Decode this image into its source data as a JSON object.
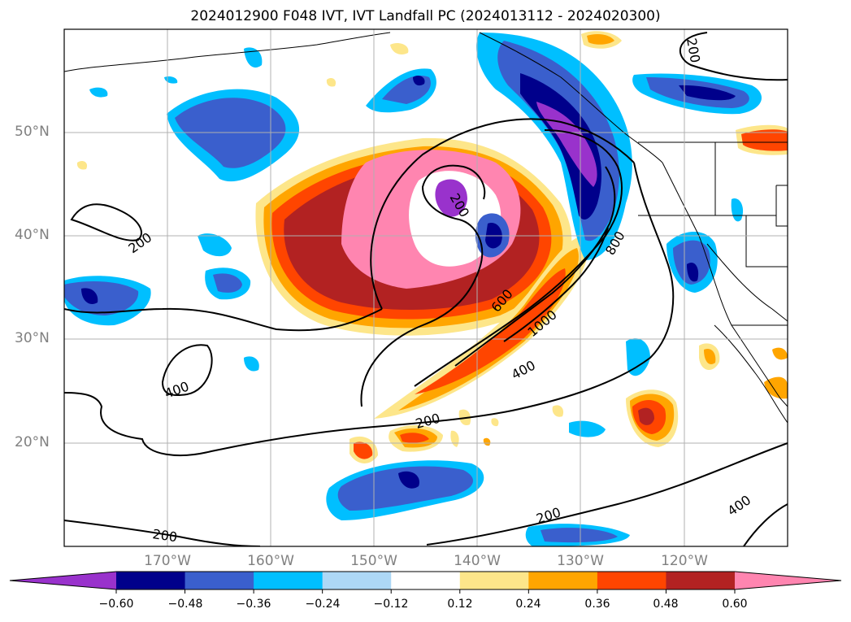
{
  "title": "2024012900 F048 IVT, IVT Landfall PC (2024013112 - 2024020300)",
  "map": {
    "lat_labels": [
      "50°N",
      "40°N",
      "30°N",
      "20°N"
    ],
    "lon_labels": [
      "170°W",
      "160°W",
      "150°W",
      "140°W",
      "130°W",
      "120°W"
    ],
    "contour_labels": [
      "200",
      "200",
      "200",
      "200",
      "200",
      "400",
      "400",
      "400",
      "600",
      "800",
      "1000",
      "200"
    ]
  },
  "colorbar": {
    "ticks": [
      "−0.60",
      "−0.48",
      "−0.36",
      "−0.24",
      "−0.12",
      "0.12",
      "0.24",
      "0.36",
      "0.48",
      "0.60"
    ],
    "colors": [
      "#9932cc",
      "#00008b",
      "#3a5fcd",
      "#00bfff",
      "#add8f6",
      "#ffffff",
      "#fde68a",
      "#ffa500",
      "#ff4500",
      "#b22222",
      "#ff85b0"
    ]
  }
}
